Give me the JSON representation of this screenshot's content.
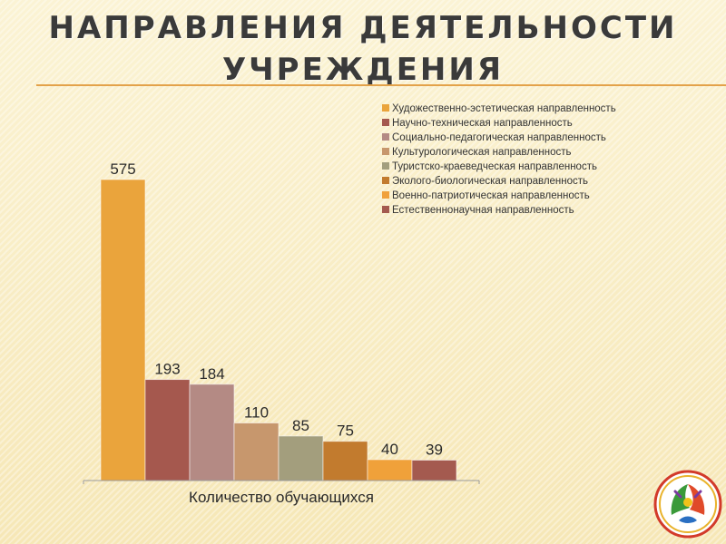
{
  "slide": {
    "title_line1": "НАПРАВЛЕНИЯ ДЕЯТЕЛЬНОСТИ",
    "title_line2": "УЧРЕЖДЕНИЯ"
  },
  "colors": {
    "title_rule": "#e3a24a",
    "series": [
      "#eaa43c",
      "#a5584e",
      "#b48a84",
      "#c7976d",
      "#a39e7d",
      "#c27b2e",
      "#f0a13a",
      "#a45a4f"
    ]
  },
  "chart_data": {
    "type": "bar",
    "categories": [
      "Количество обучающихся"
    ],
    "xlabel": "Количество обучающихся",
    "ylabel": "",
    "ylim": [
      0,
      600
    ],
    "grid": false,
    "legend_position": "top-right",
    "series": [
      {
        "name": "Художественно-эстетическая направленность",
        "values": [
          575
        ]
      },
      {
        "name": "Научно-техническая направленность",
        "values": [
          193
        ]
      },
      {
        "name": "Социально-педагогическая направленность",
        "values": [
          184
        ]
      },
      {
        "name": "Культурологическая направленность",
        "values": [
          110
        ]
      },
      {
        "name": "Туристско-краеведческая направленность",
        "values": [
          85
        ]
      },
      {
        "name": "Эколого-биологическая направленность",
        "values": [
          75
        ]
      },
      {
        "name": "Военно-патриотическая направленность",
        "values": [
          40
        ]
      },
      {
        "name": "Естественнонаучная направленность",
        "values": [
          39
        ]
      }
    ]
  }
}
